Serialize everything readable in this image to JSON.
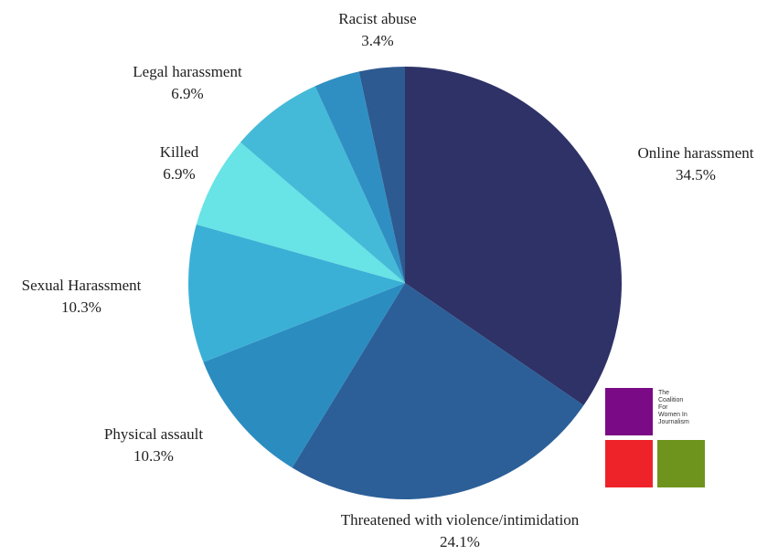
{
  "chart_data": {
    "type": "pie",
    "title": "",
    "start_angle_deg": 0,
    "direction": "clockwise",
    "slices": [
      {
        "label": "Online harassment",
        "value": 34.5,
        "display": "34.5%",
        "color": "#2e3267"
      },
      {
        "label": "Threatened with violence/intimidation",
        "value": 24.1,
        "display": "24.1%",
        "color": "#2c5f98"
      },
      {
        "label": "Physical assault",
        "value": 10.3,
        "display": "10.3%",
        "color": "#2b8cc0"
      },
      {
        "label": "Sexual Harassment",
        "value": 10.3,
        "display": "10.3%",
        "color": "#3bb0d6"
      },
      {
        "label": "Killed",
        "value": 6.9,
        "display": "6.9%",
        "color": "#68e3e6"
      },
      {
        "label": "Legal harassment",
        "value": 6.9,
        "display": "6.9%",
        "color": "#45bad8"
      },
      {
        "label": "Racist abuse",
        "value": 3.4,
        "display": "3.4%",
        "color": "#2f8fc2"
      },
      {
        "label": "",
        "value": 3.4,
        "display": "",
        "color": "#2d5a90"
      }
    ]
  },
  "logo": {
    "lines": [
      "The",
      "Coalition",
      "For",
      "Women In",
      "Journalism"
    ],
    "colors": [
      "#7b0a86",
      "#ee2229",
      "#6f941d"
    ]
  }
}
